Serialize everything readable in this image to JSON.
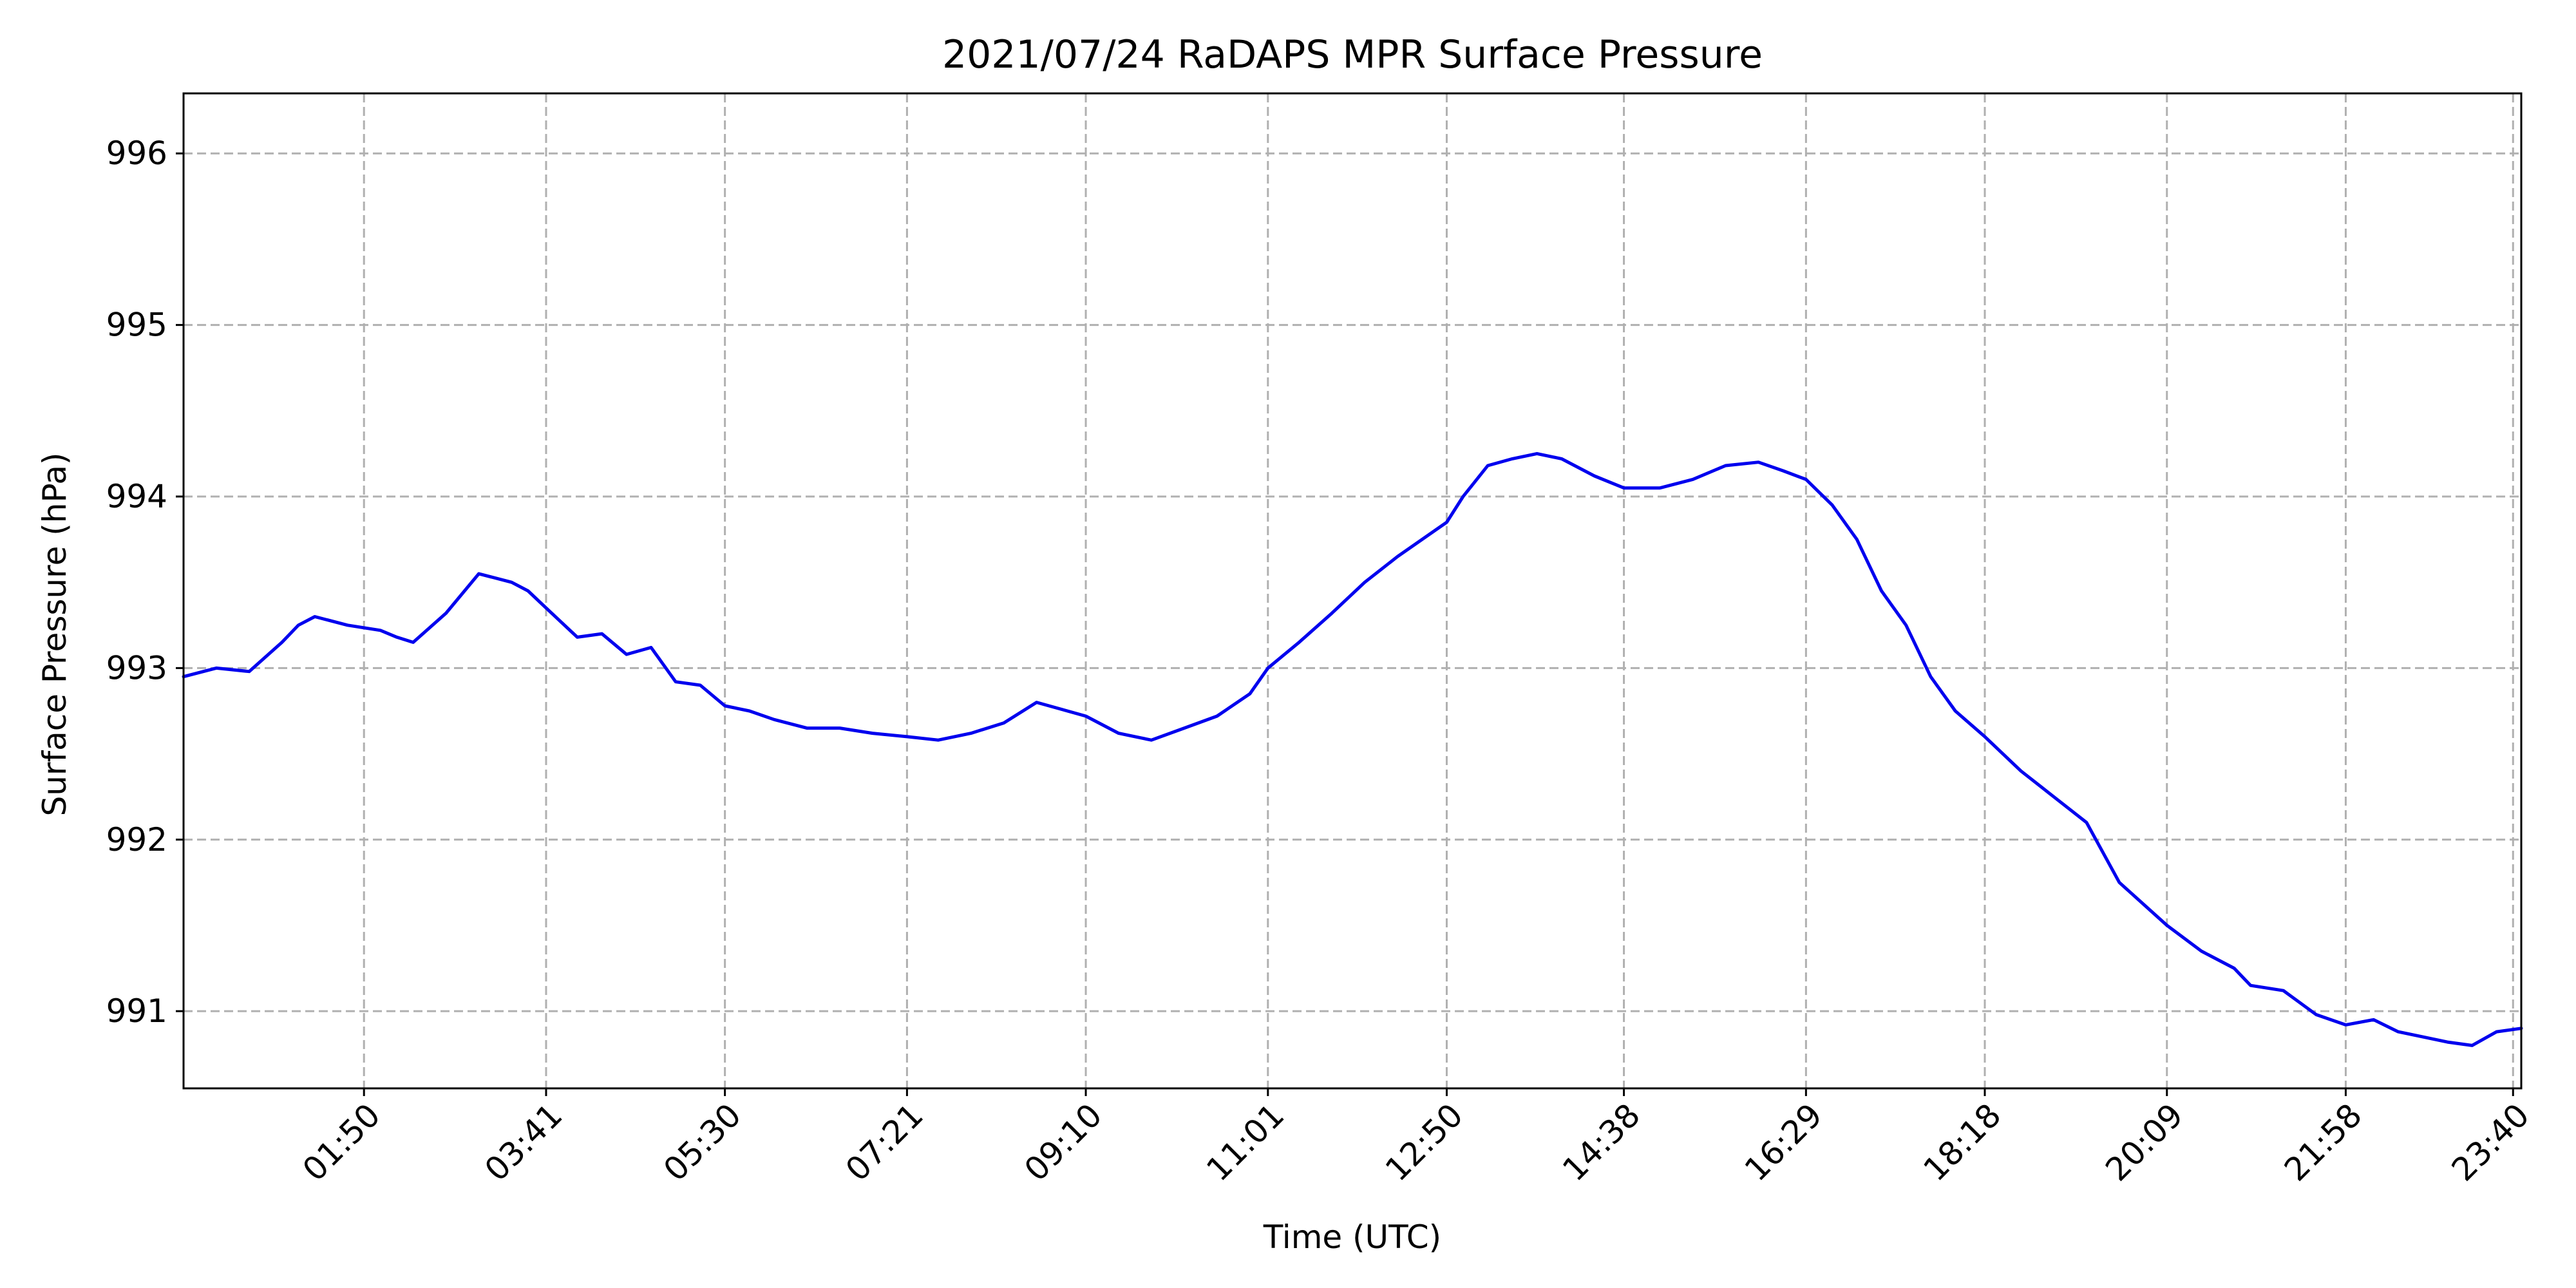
{
  "chart_data": {
    "type": "line",
    "title": "2021/07/24 RaDAPS MPR Surface Pressure",
    "xlabel": "Time (UTC)",
    "ylabel": "Surface Pressure (hPa)",
    "x_unit": "UTC time of day (HH:MM)",
    "xlim": [
      "00:00",
      "23:45"
    ],
    "ylim": [
      990.55,
      996.35
    ],
    "x_ticks": [
      "01:50",
      "03:41",
      "05:30",
      "07:21",
      "09:10",
      "11:01",
      "12:50",
      "14:38",
      "16:29",
      "18:18",
      "20:09",
      "21:58",
      "23:40"
    ],
    "y_ticks": [
      991,
      992,
      993,
      994,
      995,
      996
    ],
    "grid": true,
    "line_color": "#0000ee",
    "series": [
      {
        "x": [
          "00:00",
          "00:20",
          "00:40",
          "01:00",
          "01:10",
          "01:20",
          "01:40",
          "02:00",
          "02:10",
          "02:20",
          "02:40",
          "03:00",
          "03:20",
          "03:30",
          "03:41",
          "04:00",
          "04:15",
          "04:30",
          "04:45",
          "05:00",
          "05:15",
          "05:30",
          "05:45",
          "06:00",
          "06:20",
          "06:40",
          "07:00",
          "07:21",
          "07:40",
          "08:00",
          "08:20",
          "08:40",
          "09:10",
          "09:30",
          "09:50",
          "10:10",
          "10:30",
          "10:50",
          "11:01",
          "11:20",
          "11:40",
          "12:00",
          "12:20",
          "12:50",
          "13:00",
          "13:15",
          "13:30",
          "13:45",
          "14:00",
          "14:20",
          "14:38",
          "15:00",
          "15:20",
          "15:40",
          "16:00",
          "16:15",
          "16:29",
          "16:45",
          "17:00",
          "17:15",
          "17:30",
          "17:45",
          "18:00",
          "18:18",
          "18:40",
          "19:00",
          "19:20",
          "19:40",
          "20:09",
          "20:30",
          "20:50",
          "21:00",
          "21:20",
          "21:40",
          "21:58",
          "22:15",
          "22:30",
          "22:45",
          "23:00",
          "23:15",
          "23:30",
          "23:45"
        ],
        "y": [
          992.95,
          993.0,
          992.98,
          993.15,
          993.25,
          993.3,
          993.25,
          993.22,
          993.18,
          993.15,
          993.32,
          993.55,
          993.5,
          993.45,
          993.35,
          993.18,
          993.2,
          993.08,
          993.12,
          992.92,
          992.9,
          992.78,
          992.75,
          992.7,
          992.65,
          992.65,
          992.62,
          992.6,
          992.58,
          992.62,
          992.68,
          992.8,
          992.72,
          992.62,
          992.58,
          992.65,
          992.72,
          992.85,
          993.0,
          993.15,
          993.32,
          993.5,
          993.65,
          993.85,
          994.0,
          994.18,
          994.22,
          994.25,
          994.22,
          994.12,
          994.05,
          994.05,
          994.1,
          994.18,
          994.2,
          994.15,
          994.1,
          993.95,
          993.75,
          993.45,
          993.25,
          992.95,
          992.75,
          992.6,
          992.4,
          992.25,
          992.1,
          991.75,
          991.5,
          991.35,
          991.25,
          991.15,
          991.12,
          990.98,
          990.92,
          990.95,
          990.88,
          990.85,
          990.82,
          990.8,
          990.88,
          990.9
        ]
      }
    ]
  }
}
